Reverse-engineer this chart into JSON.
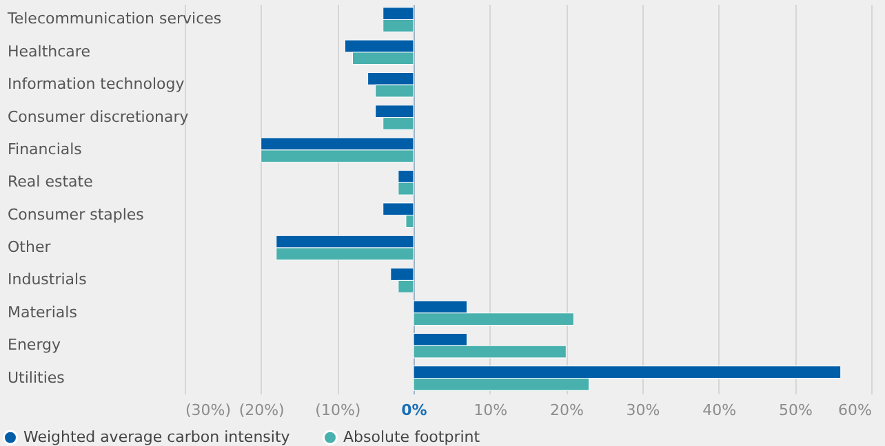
{
  "chart_data": {
    "type": "bar",
    "orientation": "horizontal",
    "categories": [
      "Telecommunication services",
      "Healthcare",
      "Information technology",
      "Consumer discretionary",
      "Financials",
      "Real estate",
      "Consumer staples",
      "Other",
      "Industrials",
      "Materials",
      "Energy",
      "Utilities"
    ],
    "series": [
      {
        "name": "Weighted average carbon intensity",
        "color": "#005ea8",
        "values": [
          -4,
          -9,
          -6,
          -5,
          -20,
          -2,
          -4,
          -18,
          -3,
          7,
          7,
          56
        ]
      },
      {
        "name": "Absolute footprint",
        "color": "#48b0ad",
        "values": [
          -4,
          -8,
          -5,
          -4,
          -20,
          -2,
          -1,
          -18,
          -2,
          21,
          20,
          23
        ]
      }
    ],
    "xlim": [
      -30,
      60
    ],
    "xticks": [
      {
        "value": -30,
        "label": "(30%)"
      },
      {
        "value": -20,
        "label": "(20%)"
      },
      {
        "value": -10,
        "label": "(10%)"
      },
      {
        "value": 0,
        "label": "0%"
      },
      {
        "value": 10,
        "label": "10%"
      },
      {
        "value": 20,
        "label": "20%"
      },
      {
        "value": 30,
        "label": "30%"
      },
      {
        "value": 40,
        "label": "40%"
      },
      {
        "value": 50,
        "label": "50%"
      },
      {
        "value": 60,
        "label": "60%"
      }
    ],
    "grid": "x",
    "legend": "bottom left"
  }
}
